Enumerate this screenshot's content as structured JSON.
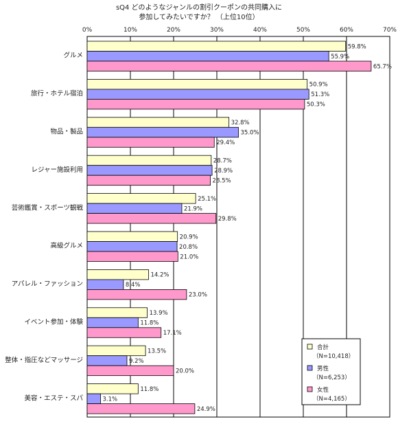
{
  "chart_data": {
    "type": "bar",
    "orientation": "horizontal",
    "title": [
      "sQ4 どのようなジャンルの割引クーポンの共同購入に",
      "参加してみたいですか？ （上位10位）"
    ],
    "xlim": [
      0,
      70
    ],
    "x_ticks": [
      "0%",
      "10%",
      "20%",
      "30%",
      "40%",
      "50%",
      "60%",
      "70%"
    ],
    "grid": "vertical",
    "legend_position": "bottom-right",
    "categories": [
      "グルメ",
      "旅行・ホテル宿泊",
      "物品・製品",
      "レジャー施設利用",
      "芸術鑑賞・スポーツ観戦",
      "高級グルメ",
      "アパレル・ファッション",
      "イベント参加・体験",
      "整体・指圧などマッサージ",
      "美容・エステ・スパ"
    ],
    "series": [
      {
        "name": "合計",
        "sub": "（N=10,418）",
        "color": "#ffffcc",
        "values": [
          59.8,
          50.9,
          32.8,
          28.7,
          25.1,
          20.9,
          14.2,
          13.9,
          13.5,
          11.8
        ],
        "labels": [
          "59.8%",
          "50.9%",
          "32.8%",
          "28.7%",
          "25.1%",
          "20.9%",
          "14.2%",
          "13.9%",
          "13.5%",
          "11.8%"
        ]
      },
      {
        "name": "男性",
        "sub": "（N=6,253）",
        "color": "#9999ff",
        "values": [
          55.9,
          51.3,
          35.0,
          28.9,
          21.9,
          20.8,
          8.4,
          11.8,
          9.2,
          3.1
        ],
        "labels": [
          "55.9%",
          "51.3%",
          "35.0%",
          "28.9%",
          "21.9%",
          "20.8%",
          "8.4%",
          "11.8%",
          "9.2%",
          "3.1%"
        ]
      },
      {
        "name": "女性",
        "sub": "（N=4,165）",
        "color": "#ff99cc",
        "values": [
          65.7,
          50.3,
          29.4,
          28.5,
          29.8,
          21.0,
          23.0,
          17.1,
          20.0,
          24.9
        ],
        "labels": [
          "65.7%",
          "50.3%",
          "29.4%",
          "28.5%",
          "29.8%",
          "21.0%",
          "23.0%",
          "17.1%",
          "20.0%",
          "24.9%"
        ]
      }
    ]
  }
}
